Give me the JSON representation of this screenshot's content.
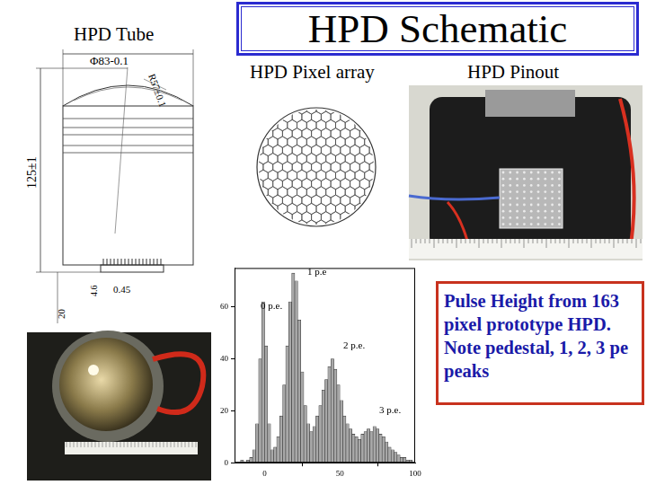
{
  "title": "HPD Schematic",
  "panels": {
    "tube": {
      "label": "HPD Tube",
      "dimensions": [
        "Φ83-0.1",
        "R57±0.1",
        "125±1",
        "4.6",
        "0.45",
        "20"
      ]
    },
    "pixel_array": {
      "label": "HPD Pixel array"
    },
    "pinout": {
      "label": "HPD Pinout"
    }
  },
  "note": "Pulse Height from 163 pixel prototype HPD. Note pedestal, 1, 2, 3 pe peaks",
  "chart_data": {
    "type": "histogram",
    "bins": [
      -20,
      -18,
      -16,
      -14,
      -12,
      -10,
      -8,
      -6,
      -4,
      -2,
      0,
      2,
      4,
      6,
      8,
      10,
      12,
      14,
      16,
      18,
      20,
      22,
      24,
      26,
      28,
      30,
      32,
      34,
      36,
      38,
      40,
      42,
      44,
      46,
      48,
      50,
      52,
      54,
      56,
      58,
      60,
      62,
      64,
      66,
      68,
      70,
      72,
      74,
      76,
      78,
      80,
      82,
      84,
      86,
      88,
      90,
      92,
      94,
      96,
      98,
      100
    ],
    "counts": [
      0,
      0,
      1,
      0,
      1,
      2,
      5,
      15,
      40,
      62,
      45,
      15,
      5,
      6,
      10,
      18,
      30,
      45,
      62,
      73,
      70,
      55,
      35,
      22,
      15,
      12,
      14,
      18,
      22,
      28,
      32,
      37,
      40,
      36,
      30,
      24,
      18,
      15,
      13,
      11,
      10,
      9,
      11,
      12,
      13,
      12,
      14,
      13,
      11,
      10,
      8,
      6,
      5,
      4,
      3,
      2,
      2,
      1,
      1,
      0
    ],
    "color": "#a8a8a8",
    "xlim": [
      -20,
      100
    ],
    "xticks": [
      0,
      50,
      100
    ],
    "ylim": [
      0,
      75
    ],
    "yticks": [
      0,
      20,
      40,
      60
    ],
    "grid": false,
    "annotations": [
      "0 p.e.",
      "1 p.e",
      "2 p.e.",
      "3 p.e."
    ]
  }
}
